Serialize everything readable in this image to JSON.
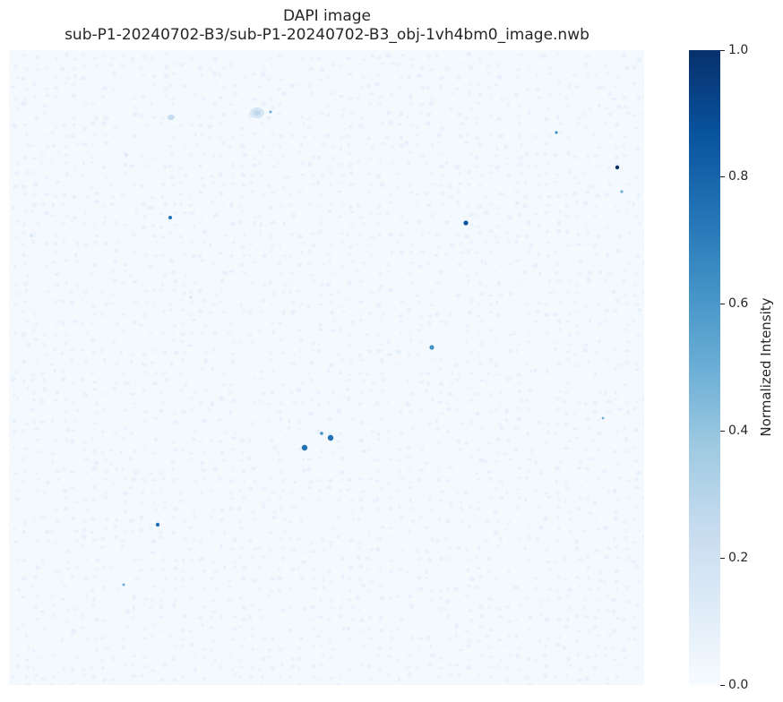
{
  "figure": {
    "title_line1": "DAPI image",
    "title_line2": "sub-P1-20240702-B3/sub-P1-20240702-B3_obj-1vh4bm0_image.nwb"
  },
  "image": {
    "colormap": "Blues",
    "background_color": "#f4f9fe",
    "texture_color": "#e3eefa"
  },
  "colorbar": {
    "label": "Normalized Intensity",
    "range": [
      0.0,
      1.0
    ],
    "ticks": [
      "0.0",
      "0.2",
      "0.4",
      "0.6",
      "0.8",
      "1.0"
    ],
    "tick_values": [
      0.0,
      0.2,
      0.4,
      0.6,
      0.8,
      1.0
    ],
    "colors": [
      "#f7fbff",
      "#deebf7",
      "#c6dbef",
      "#9ecae1",
      "#6baed6",
      "#4292c6",
      "#2171b5",
      "#08519c",
      "#08306b"
    ]
  }
}
